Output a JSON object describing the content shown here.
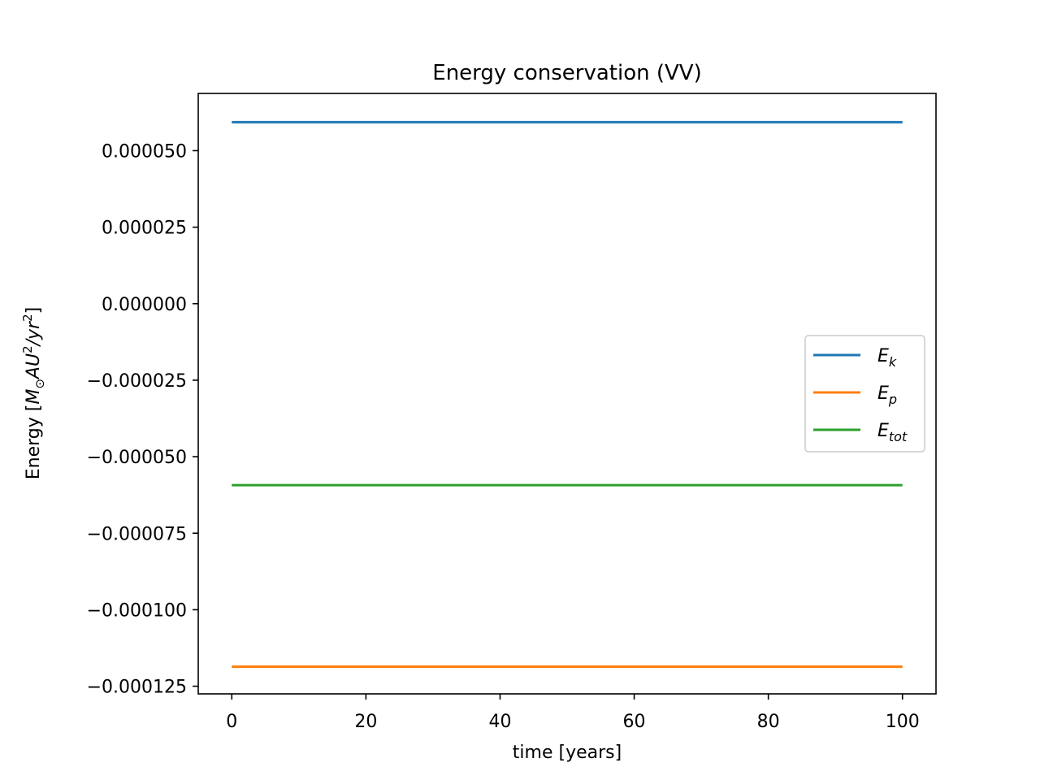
{
  "chart_data": {
    "type": "line",
    "title": "Energy conservation (VV)",
    "xlabel": "time [years]",
    "ylabel": {
      "prefix": "Energy [",
      "M": "M",
      "sun": "⊙",
      "AU": "AU",
      "sup1": "2",
      "slash": "/yr",
      "sup2": "2",
      "suffix": "]"
    },
    "xlim": [
      -5,
      105
    ],
    "ylim": [
      -0.0001275,
      6.87e-05
    ],
    "xticks": [
      0,
      20,
      40,
      60,
      80,
      100
    ],
    "yticks": [
      5e-05,
      2.5e-05,
      0.0,
      -2.5e-05,
      -5e-05,
      -7.5e-05,
      -0.0001,
      -0.000125
    ],
    "ytick_labels": [
      "0.000050",
      "0.000025",
      "0.000000",
      "−0.000025",
      "−0.000050",
      "−0.000075",
      "−0.000100",
      "−0.000125"
    ],
    "grid": false,
    "legend_position": "center-right",
    "x": [
      0,
      10,
      20,
      30,
      40,
      50,
      60,
      70,
      80,
      90,
      100
    ],
    "series": [
      {
        "base": "E",
        "sub": "k",
        "color": "#1f77b4",
        "values": [
          5.93e-05,
          5.93e-05,
          5.93e-05,
          5.93e-05,
          5.93e-05,
          5.93e-05,
          5.93e-05,
          5.93e-05,
          5.93e-05,
          5.93e-05,
          5.93e-05
        ]
      },
      {
        "base": "E",
        "sub": "p",
        "color": "#ff7f0e",
        "values": [
          -0.0001186,
          -0.0001186,
          -0.0001186,
          -0.0001186,
          -0.0001186,
          -0.0001186,
          -0.0001186,
          -0.0001186,
          -0.0001186,
          -0.0001186,
          -0.0001186
        ]
      },
      {
        "base": "E",
        "sub": "tot",
        "color": "#2ca02c",
        "values": [
          -5.93e-05,
          -5.93e-05,
          -5.93e-05,
          -5.93e-05,
          -5.93e-05,
          -5.93e-05,
          -5.93e-05,
          -5.93e-05,
          -5.93e-05,
          -5.93e-05,
          -5.93e-05
        ]
      }
    ]
  }
}
